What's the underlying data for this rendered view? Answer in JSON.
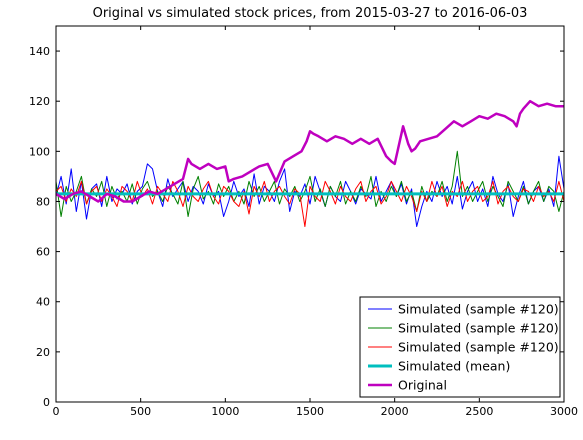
{
  "chart_data": {
    "type": "line",
    "title": "Original vs simulated stock prices, from 2015-03-27 to 2016-06-03",
    "xlabel": "",
    "ylabel": "",
    "xlim": [
      0,
      3000
    ],
    "ylim": [
      0,
      150
    ],
    "x_ticks": [
      0,
      500,
      1000,
      1500,
      2000,
      2500,
      3000
    ],
    "y_ticks": [
      0,
      20,
      40,
      60,
      80,
      100,
      120,
      140
    ],
    "grid": false,
    "legend_position": "lower-right",
    "series": [
      {
        "name": "Simulated (sample #120)",
        "color": "#0000ff",
        "width": 1,
        "x": [
          0,
          30,
          60,
          90,
          120,
          150,
          180,
          210,
          240,
          270,
          300,
          330,
          360,
          390,
          420,
          450,
          480,
          510,
          540,
          570,
          600,
          630,
          660,
          690,
          720,
          750,
          780,
          810,
          840,
          870,
          900,
          930,
          960,
          990,
          1020,
          1050,
          1080,
          1110,
          1140,
          1170,
          1200,
          1230,
          1260,
          1290,
          1320,
          1350,
          1380,
          1410,
          1440,
          1470,
          1500,
          1530,
          1560,
          1590,
          1620,
          1650,
          1680,
          1710,
          1740,
          1770,
          1800,
          1830,
          1860,
          1890,
          1920,
          1950,
          1980,
          2010,
          2040,
          2070,
          2100,
          2130,
          2160,
          2190,
          2220,
          2250,
          2280,
          2310,
          2340,
          2370,
          2400,
          2430,
          2460,
          2490,
          2520,
          2550,
          2580,
          2610,
          2640,
          2670,
          2700,
          2730,
          2760,
          2790,
          2820,
          2850,
          2880,
          2910,
          2940,
          2970,
          3000
        ],
        "values": [
          82,
          90,
          79,
          93,
          76,
          88,
          73,
          85,
          87,
          78,
          90,
          80,
          85,
          83,
          87,
          79,
          84,
          86,
          95,
          93,
          84,
          78,
          89,
          82,
          85,
          88,
          80,
          86,
          84,
          79,
          87,
          82,
          84,
          74,
          80,
          88,
          82,
          85,
          78,
          91,
          79,
          86,
          84,
          80,
          88,
          93,
          76,
          84,
          82,
          87,
          79,
          90,
          84,
          78,
          86,
          82,
          80,
          88,
          84,
          79,
          85,
          83,
          81,
          90,
          80,
          84,
          88,
          82,
          87,
          79,
          85,
          70,
          78,
          84,
          80,
          88,
          82,
          86,
          79,
          90,
          77,
          84,
          88,
          80,
          85,
          78,
          90,
          83,
          80,
          87,
          74,
          82,
          88,
          79,
          84,
          86,
          80,
          85,
          78,
          98,
          85
        ]
      },
      {
        "name": "Simulated (sample #120)",
        "color": "#008000",
        "width": 1,
        "x": [
          0,
          30,
          60,
          90,
          120,
          150,
          180,
          210,
          240,
          270,
          300,
          330,
          360,
          390,
          420,
          450,
          480,
          510,
          540,
          570,
          600,
          630,
          660,
          690,
          720,
          750,
          780,
          810,
          840,
          870,
          900,
          930,
          960,
          990,
          1020,
          1050,
          1080,
          1110,
          1140,
          1170,
          1200,
          1230,
          1260,
          1290,
          1320,
          1350,
          1380,
          1410,
          1440,
          1470,
          1500,
          1530,
          1560,
          1590,
          1620,
          1650,
          1680,
          1710,
          1740,
          1770,
          1800,
          1830,
          1860,
          1890,
          1920,
          1950,
          1980,
          2010,
          2040,
          2070,
          2100,
          2130,
          2160,
          2190,
          2220,
          2250,
          2280,
          2310,
          2340,
          2370,
          2400,
          2430,
          2460,
          2490,
          2520,
          2550,
          2580,
          2610,
          2640,
          2670,
          2700,
          2730,
          2760,
          2790,
          2820,
          2850,
          2880,
          2910,
          2940,
          2970,
          3000
        ],
        "values": [
          88,
          74,
          86,
          80,
          84,
          90,
          79,
          85,
          82,
          88,
          78,
          86,
          81,
          84,
          80,
          87,
          79,
          85,
          88,
          82,
          84,
          80,
          86,
          83,
          79,
          88,
          74,
          85,
          90,
          81,
          84,
          79,
          87,
          82,
          86,
          80,
          84,
          79,
          88,
          82,
          86,
          80,
          84,
          88,
          79,
          85,
          82,
          86,
          80,
          84,
          90,
          80,
          85,
          78,
          86,
          82,
          88,
          79,
          84,
          80,
          86,
          82,
          90,
          78,
          84,
          80,
          86,
          82,
          88,
          80,
          84,
          76,
          86,
          80,
          84,
          82,
          88,
          80,
          86,
          100,
          82,
          86,
          80,
          84,
          88,
          80,
          86,
          82,
          78,
          88,
          84,
          80,
          86,
          79,
          84,
          88,
          80,
          86,
          84,
          76,
          84
        ]
      },
      {
        "name": "Simulated (sample #120)",
        "color": "#ff0000",
        "width": 1,
        "x": [
          0,
          30,
          60,
          90,
          120,
          150,
          180,
          210,
          240,
          270,
          300,
          330,
          360,
          390,
          420,
          450,
          480,
          510,
          540,
          570,
          600,
          630,
          660,
          690,
          720,
          750,
          780,
          810,
          840,
          870,
          900,
          930,
          960,
          990,
          1020,
          1050,
          1080,
          1110,
          1140,
          1170,
          1200,
          1230,
          1260,
          1290,
          1320,
          1350,
          1380,
          1410,
          1440,
          1470,
          1500,
          1530,
          1560,
          1590,
          1620,
          1650,
          1680,
          1710,
          1740,
          1770,
          1800,
          1830,
          1860,
          1890,
          1920,
          1950,
          1980,
          2010,
          2040,
          2070,
          2100,
          2130,
          2160,
          2190,
          2220,
          2250,
          2280,
          2310,
          2340,
          2370,
          2400,
          2430,
          2460,
          2490,
          2520,
          2550,
          2580,
          2610,
          2640,
          2670,
          2700,
          2730,
          2760,
          2790,
          2820,
          2850,
          2880,
          2910,
          2940,
          2970,
          3000
        ],
        "values": [
          84,
          86,
          80,
          85,
          82,
          88,
          79,
          84,
          86,
          80,
          85,
          82,
          78,
          86,
          84,
          80,
          88,
          82,
          85,
          79,
          86,
          83,
          80,
          88,
          84,
          78,
          86,
          82,
          80,
          85,
          88,
          82,
          79,
          86,
          84,
          80,
          78,
          84,
          75,
          86,
          82,
          88,
          80,
          84,
          86,
          82,
          79,
          85,
          83,
          70,
          86,
          82,
          80,
          88,
          84,
          79,
          86,
          82,
          80,
          85,
          88,
          80,
          84,
          86,
          79,
          82,
          88,
          84,
          80,
          86,
          82,
          76,
          84,
          80,
          88,
          82,
          86,
          78,
          84,
          82,
          88,
          80,
          84,
          86,
          80,
          82,
          88,
          79,
          84,
          86,
          82,
          80,
          85,
          84,
          80,
          86,
          82,
          84,
          80,
          88,
          80
        ]
      },
      {
        "name": "Simulated (mean)",
        "color": "#00bfbf",
        "width": 3,
        "x": [
          0,
          3000
        ],
        "values": [
          83,
          83
        ]
      },
      {
        "name": "Original",
        "color": "#bf00bf",
        "width": 2.5,
        "x": [
          0,
          50,
          100,
          150,
          200,
          250,
          300,
          350,
          400,
          450,
          500,
          550,
          600,
          650,
          700,
          750,
          780,
          800,
          850,
          900,
          950,
          1000,
          1020,
          1050,
          1100,
          1150,
          1200,
          1250,
          1300,
          1350,
          1400,
          1450,
          1480,
          1500,
          1520,
          1550,
          1600,
          1650,
          1700,
          1750,
          1800,
          1850,
          1900,
          1950,
          1980,
          2000,
          2050,
          2080,
          2100,
          2120,
          2150,
          2200,
          2250,
          2300,
          2350,
          2400,
          2450,
          2500,
          2550,
          2600,
          2650,
          2700,
          2720,
          2740,
          2760,
          2800,
          2850,
          2900,
          2950,
          3000
        ],
        "values": [
          83,
          81,
          83,
          84,
          82,
          80,
          83,
          82,
          80,
          80,
          82,
          84,
          83,
          85,
          87,
          89,
          97,
          95,
          93,
          95,
          93,
          94,
          88,
          89,
          90,
          92,
          94,
          95,
          88,
          96,
          98,
          100,
          104,
          108,
          107,
          106,
          104,
          106,
          105,
          103,
          105,
          103,
          105,
          98,
          96,
          95,
          110,
          103,
          100,
          101,
          104,
          105,
          106,
          109,
          112,
          110,
          112,
          114,
          113,
          115,
          114,
          112,
          110,
          115,
          117,
          120,
          118,
          119,
          118,
          118
        ]
      }
    ]
  }
}
